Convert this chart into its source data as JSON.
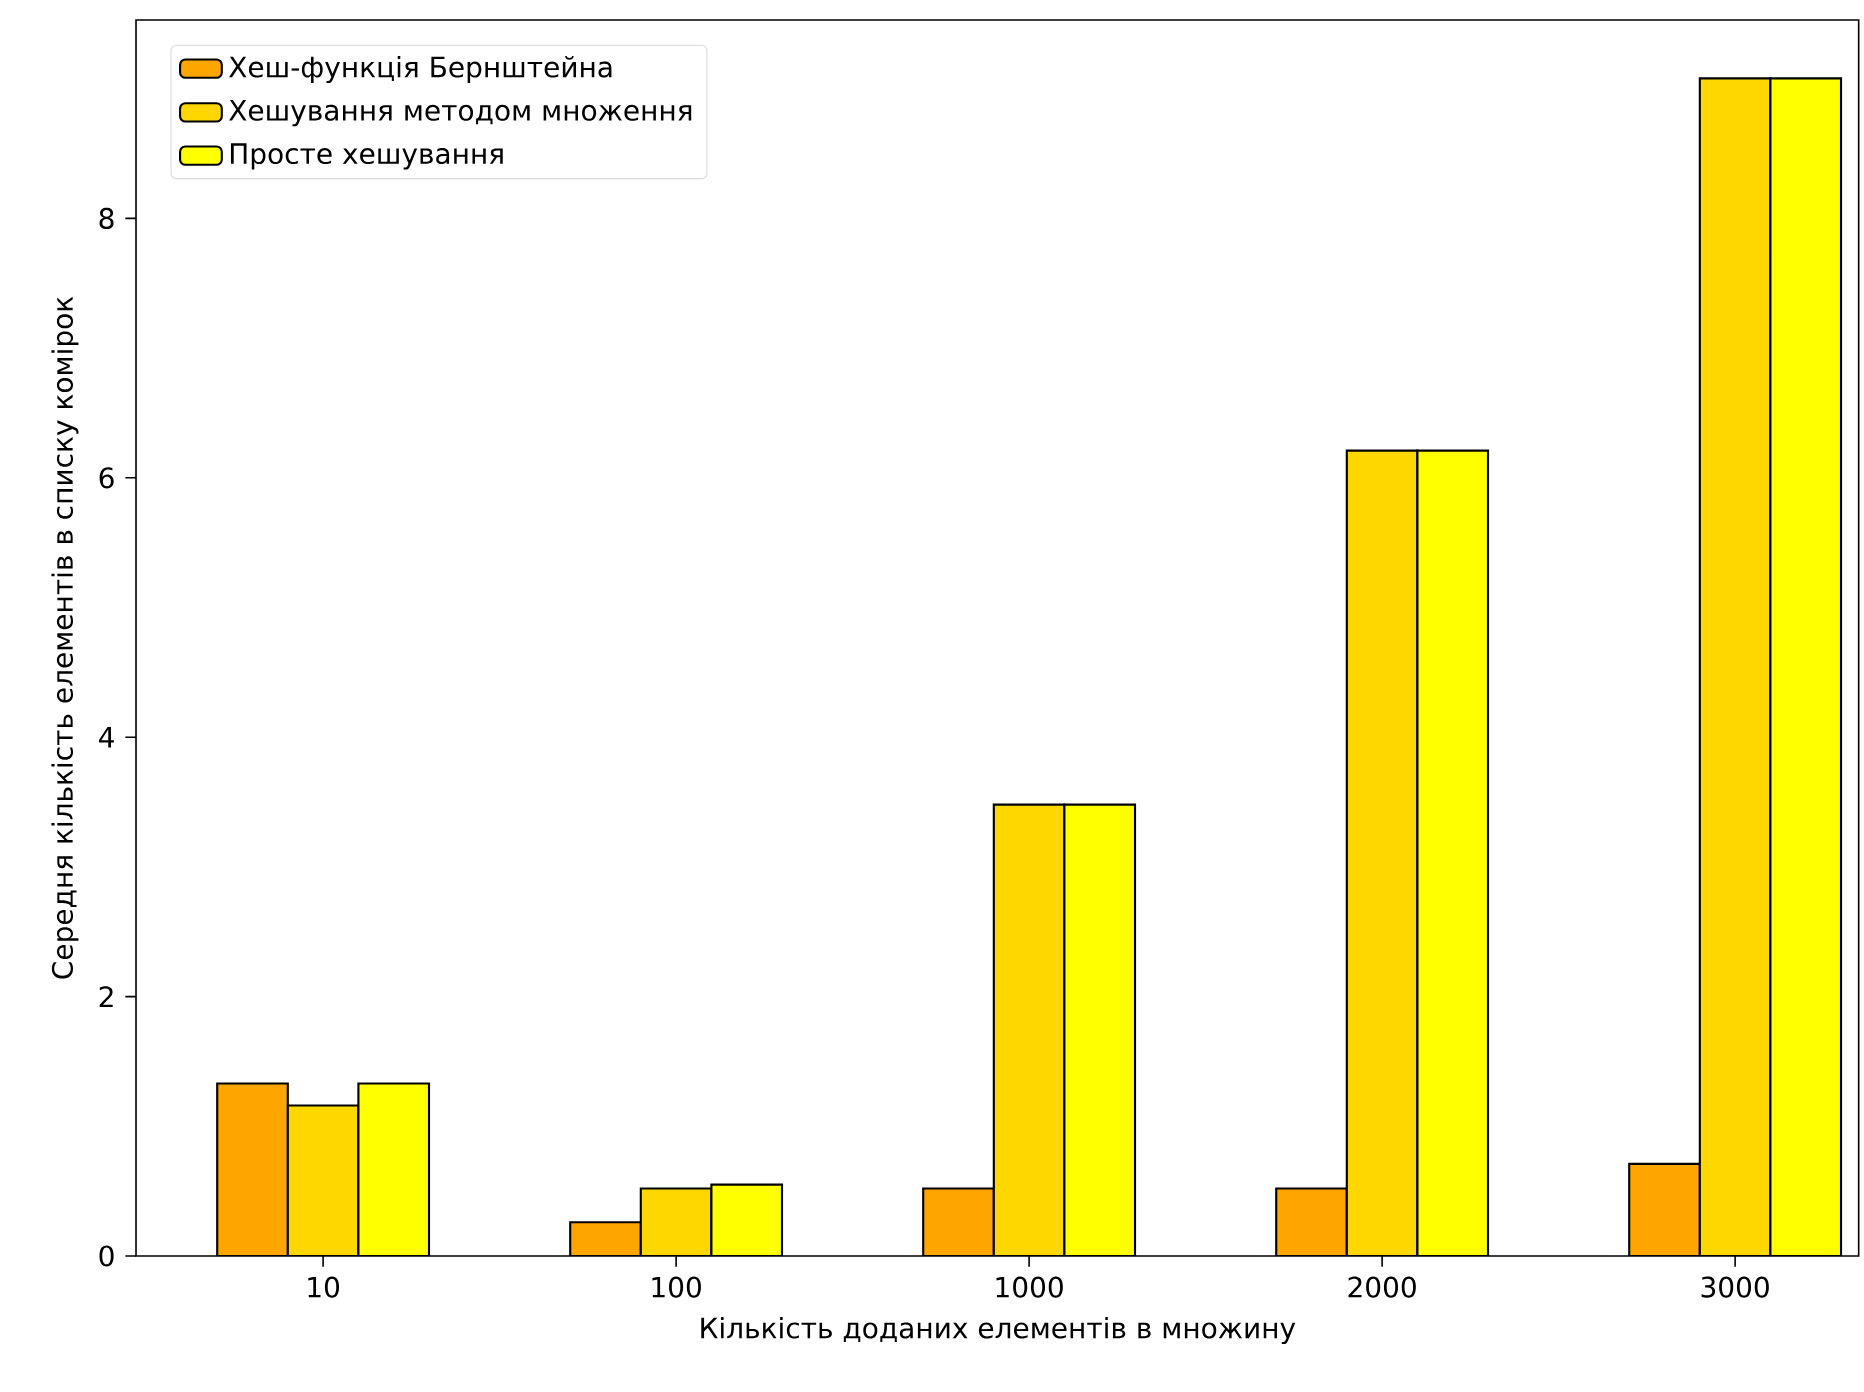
{
  "chart_data": {
    "type": "bar",
    "xlabel": "Кількість доданих елементів в множину",
    "ylabel": "Середня кількість елементів в списку комірок",
    "categories": [
      "10",
      "100",
      "1000",
      "2000",
      "3000"
    ],
    "series": [
      {
        "name": "Хеш-функція Бернштейна",
        "color": "#ffa500",
        "values": [
          1.33,
          0.26,
          0.52,
          0.52,
          0.71
        ]
      },
      {
        "name": "Хешування методом множення",
        "color": "#ffd700",
        "values": [
          1.16,
          0.52,
          3.48,
          6.21,
          9.08
        ]
      },
      {
        "name": "Просте хешування",
        "color": "#ffff00",
        "values": [
          1.33,
          0.55,
          3.48,
          6.21,
          9.08
        ]
      }
    ],
    "ylim": [
      0,
      9.53
    ],
    "yticks": [
      0,
      2,
      4,
      6,
      8
    ],
    "legend": "top left"
  }
}
